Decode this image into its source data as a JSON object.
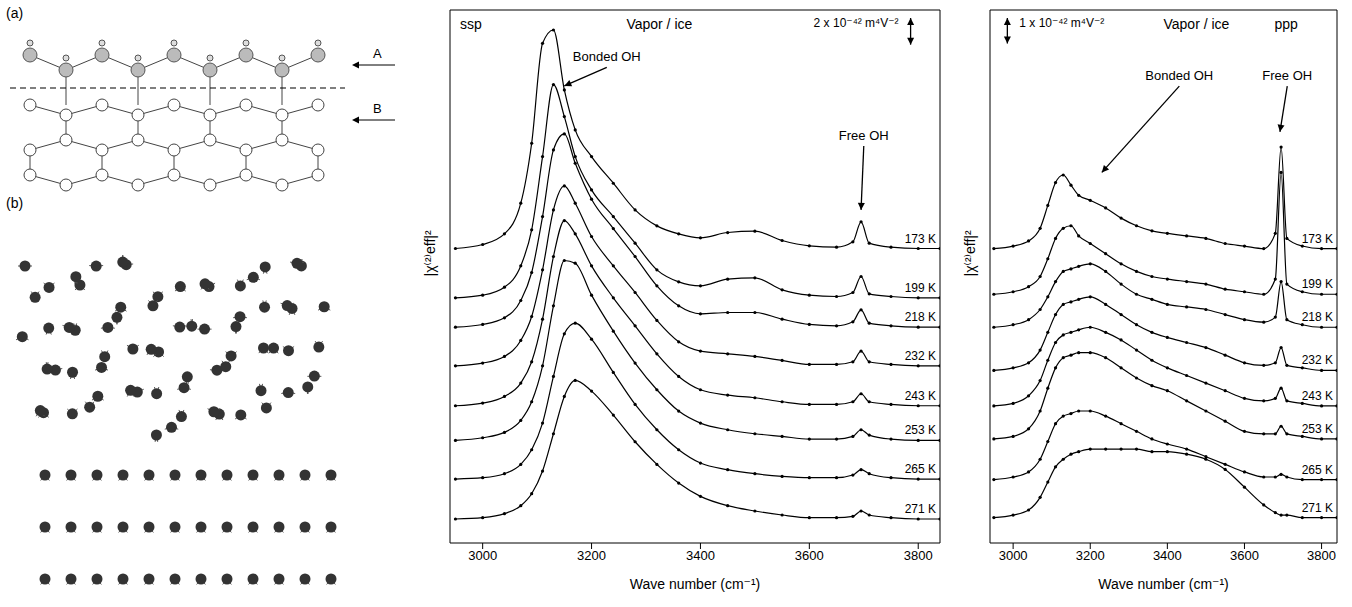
{
  "panels": {
    "a": {
      "label": "(a)",
      "layer_labels": [
        "A",
        "B"
      ]
    },
    "b": {
      "label": "(b)"
    }
  },
  "chart_data": [
    {
      "type": "line",
      "title": "ssp",
      "subtitle": "Vapor / ice",
      "scale_bar": {
        "value": 2,
        "label": "2 x 10⁻⁴² m⁴V⁻²"
      },
      "x_label": "Wave number (cm⁻¹)",
      "y_label": "|χ⁽²⁾eff|²",
      "xlim": [
        2940,
        3840
      ],
      "xticks": [
        3000,
        3200,
        3400,
        3600,
        3800
      ],
      "ylim": [
        0,
        40
      ],
      "tick_labels": "x",
      "grid": false,
      "annotations": [
        {
          "text": "Bonded OH",
          "x": 3228,
          "y": 35.7,
          "target_x": 3150,
          "target_y": 34.3
        },
        {
          "text": "Free OH",
          "x": 3700,
          "y": 29.8,
          "target_x": 3695,
          "target_y": 25
        }
      ],
      "x": [
        2950,
        3000,
        3040,
        3070,
        3090,
        3110,
        3130,
        3150,
        3170,
        3200,
        3240,
        3280,
        3320,
        3360,
        3400,
        3450,
        3500,
        3550,
        3600,
        3650,
        3680,
        3695,
        3710,
        3750,
        3800,
        3840
      ],
      "series": [
        {
          "name": "173 K",
          "color": "#000000",
          "marker": "circle",
          "line_style": "solid",
          "values": [
            22.1,
            22.4,
            23.2,
            25.5,
            30,
            37.5,
            38.5,
            34,
            31,
            29,
            27,
            25,
            23.8,
            23.2,
            22.9,
            23.3,
            23.4,
            22.7,
            22.3,
            22.2,
            22.6,
            24.1,
            22.5,
            22.2,
            22.1,
            22.1
          ]
        },
        {
          "name": "199 K",
          "color": "#000000",
          "marker": "circle",
          "line_style": "solid",
          "values": [
            18.4,
            18.6,
            19.2,
            20.8,
            23.5,
            29,
            34.4,
            32,
            29,
            26.5,
            24.5,
            22.5,
            20.5,
            19.6,
            19.3,
            19.8,
            19.9,
            19.0,
            18.6,
            18.5,
            18.8,
            20.0,
            18.7,
            18.5,
            18.4,
            18.4
          ]
        },
        {
          "name": "218 K",
          "color": "#000000",
          "marker": "circle",
          "line_style": "solid",
          "values": [
            16.2,
            16.4,
            16.9,
            18.2,
            20.3,
            24.5,
            29.5,
            30.7,
            28.5,
            25.8,
            23.6,
            21.5,
            19.3,
            17.8,
            17.2,
            17.3,
            17.3,
            16.8,
            16.4,
            16.3,
            16.6,
            17.5,
            16.5,
            16.3,
            16.2,
            16.2
          ]
        },
        {
          "name": "232 K",
          "color": "#000000",
          "marker": "circle",
          "line_style": "solid",
          "values": [
            13.3,
            13.5,
            14.0,
            15.2,
            17.0,
            20.5,
            25.0,
            26.8,
            25.5,
            23.0,
            20.8,
            18.8,
            16.7,
            15.1,
            14.4,
            14.2,
            14.0,
            13.7,
            13.4,
            13.4,
            13.6,
            14.4,
            13.6,
            13.4,
            13.3,
            13.3
          ]
        },
        {
          "name": "243 K",
          "color": "#000000",
          "marker": "circle",
          "line_style": "solid",
          "values": [
            10.3,
            10.5,
            11.0,
            12.0,
            13.6,
            16.8,
            21.5,
            24.2,
            23.2,
            20.8,
            18.4,
            16.3,
            14.2,
            12.5,
            11.5,
            11.1,
            10.9,
            10.6,
            10.4,
            10.4,
            10.6,
            11.2,
            10.6,
            10.4,
            10.3,
            10.3
          ]
        },
        {
          "name": "253 K",
          "color": "#000000",
          "marker": "circle",
          "line_style": "solid",
          "values": [
            7.7,
            7.9,
            8.3,
            9.2,
            10.6,
            13.3,
            17.8,
            21.2,
            21.0,
            18.6,
            15.9,
            13.5,
            11.5,
            9.9,
            9.0,
            8.5,
            8.2,
            8.0,
            7.8,
            7.8,
            8.0,
            8.5,
            8.1,
            7.8,
            7.7,
            7.7
          ]
        },
        {
          "name": "265 K",
          "color": "#000000",
          "marker": "circle",
          "line_style": "solid",
          "values": [
            4.8,
            4.9,
            5.2,
            5.9,
            7.0,
            9.0,
            12.5,
            15.7,
            16.5,
            15.3,
            12.8,
            10.4,
            8.5,
            7.0,
            6.0,
            5.5,
            5.2,
            5.0,
            4.9,
            4.9,
            5.1,
            5.5,
            5.2,
            4.9,
            4.8,
            4.8
          ]
        },
        {
          "name": "271 K",
          "color": "#000000",
          "marker": "circle",
          "line_style": "solid",
          "values": [
            1.8,
            1.9,
            2.2,
            2.8,
            3.7,
            5.4,
            8.2,
            11.0,
            12.2,
            11.4,
            9.6,
            7.6,
            5.9,
            4.5,
            3.5,
            2.8,
            2.4,
            2.1,
            1.9,
            1.9,
            2.0,
            2.4,
            2.1,
            1.9,
            1.8,
            1.8
          ]
        }
      ]
    },
    {
      "type": "line",
      "title": "ppp",
      "subtitle": "Vapor / ice",
      "scale_bar": {
        "value": 1,
        "label": "1 x 10⁻⁴² m⁴V⁻²"
      },
      "x_label": "Wave number (cm⁻¹)",
      "y_label": "|χ⁽²⁾eff|²",
      "xlim": [
        2940,
        3840
      ],
      "xticks": [
        3000,
        3200,
        3400,
        3600,
        3800
      ],
      "ylim": [
        0,
        21
      ],
      "tick_labels": "x",
      "grid": false,
      "annotations": [
        {
          "text": "Bonded OH",
          "x": 3431,
          "y": 18.0,
          "target_x": 3230,
          "target_y": 14.6
        },
        {
          "text": "Free OH",
          "x": 3711,
          "y": 18.0,
          "target_x": 3692,
          "target_y": 16.2
        }
      ],
      "x": [
        2950,
        3000,
        3040,
        3070,
        3090,
        3110,
        3130,
        3150,
        3170,
        3200,
        3240,
        3280,
        3320,
        3360,
        3400,
        3450,
        3500,
        3550,
        3600,
        3650,
        3680,
        3695,
        3710,
        3750,
        3800,
        3840
      ],
      "series": [
        {
          "name": "173 K",
          "color": "#000000",
          "marker": "circle",
          "line_style": "solid",
          "values": [
            11.6,
            11.7,
            11.9,
            12.4,
            13.3,
            14.2,
            14.5,
            14.1,
            13.7,
            13.5,
            13.2,
            12.8,
            12.5,
            12.3,
            12.2,
            12.1,
            12.0,
            11.8,
            11.7,
            11.6,
            12.2,
            15.6,
            12.0,
            11.7,
            11.6,
            11.6
          ]
        },
        {
          "name": "199 K",
          "color": "#000000",
          "marker": "circle",
          "line_style": "solid",
          "values": [
            9.8,
            9.9,
            10.1,
            10.5,
            11.2,
            12.0,
            12.4,
            12.5,
            12.1,
            11.8,
            11.4,
            11.0,
            10.7,
            10.5,
            10.4,
            10.3,
            10.2,
            10.0,
            9.9,
            9.8,
            10.4,
            14.6,
            10.2,
            9.9,
            9.8,
            9.8
          ]
        },
        {
          "name": "218 K",
          "color": "#000000",
          "marker": "circle",
          "line_style": "solid",
          "values": [
            8.5,
            8.6,
            8.8,
            9.2,
            9.7,
            10.3,
            10.7,
            10.8,
            10.9,
            11.0,
            10.7,
            10.2,
            9.8,
            9.6,
            9.4,
            9.3,
            9.2,
            9.0,
            8.8,
            8.7,
            8.9,
            10.3,
            8.8,
            8.6,
            8.5,
            8.5
          ]
        },
        {
          "name": "232 K",
          "color": "#000000",
          "marker": "circle",
          "line_style": "solid",
          "values": [
            6.8,
            6.9,
            7.1,
            7.6,
            8.3,
            9.0,
            9.4,
            9.5,
            9.6,
            9.7,
            9.4,
            9.0,
            8.6,
            8.3,
            8.1,
            7.9,
            7.7,
            7.4,
            7.1,
            7.0,
            7.1,
            7.7,
            7.0,
            6.9,
            6.8,
            6.8
          ]
        },
        {
          "name": "243 K",
          "color": "#000000",
          "marker": "circle",
          "line_style": "solid",
          "values": [
            5.4,
            5.5,
            5.8,
            6.4,
            7.2,
            7.9,
            8.2,
            8.3,
            8.4,
            8.5,
            8.3,
            8.0,
            7.6,
            7.2,
            6.9,
            6.6,
            6.3,
            6.0,
            5.7,
            5.6,
            5.7,
            6.1,
            5.6,
            5.5,
            5.4,
            5.4
          ]
        },
        {
          "name": "253 K",
          "color": "#000000",
          "marker": "circle",
          "line_style": "solid",
          "values": [
            4.1,
            4.2,
            4.5,
            5.2,
            6.1,
            6.9,
            7.3,
            7.4,
            7.5,
            7.5,
            7.3,
            6.9,
            6.5,
            6.2,
            6.0,
            5.6,
            5.2,
            4.8,
            4.4,
            4.3,
            4.3,
            4.6,
            4.3,
            4.2,
            4.1,
            4.1
          ]
        },
        {
          "name": "265 K",
          "color": "#000000",
          "marker": "circle",
          "line_style": "solid",
          "values": [
            2.5,
            2.6,
            2.8,
            3.3,
            4.0,
            4.7,
            5.0,
            5.1,
            5.2,
            5.2,
            5.0,
            4.7,
            4.4,
            4.1,
            3.9,
            3.7,
            3.4,
            3.1,
            2.8,
            2.6,
            2.6,
            2.7,
            2.6,
            2.5,
            2.5,
            2.5
          ]
        },
        {
          "name": "271 K",
          "color": "#000000",
          "marker": "circle",
          "line_style": "solid",
          "values": [
            1.0,
            1.1,
            1.3,
            1.8,
            2.4,
            3.0,
            3.3,
            3.5,
            3.6,
            3.7,
            3.7,
            3.7,
            3.7,
            3.6,
            3.6,
            3.5,
            3.3,
            2.9,
            2.2,
            1.5,
            1.2,
            1.1,
            1.1,
            1.0,
            1.0,
            1.0
          ]
        }
      ]
    }
  ]
}
